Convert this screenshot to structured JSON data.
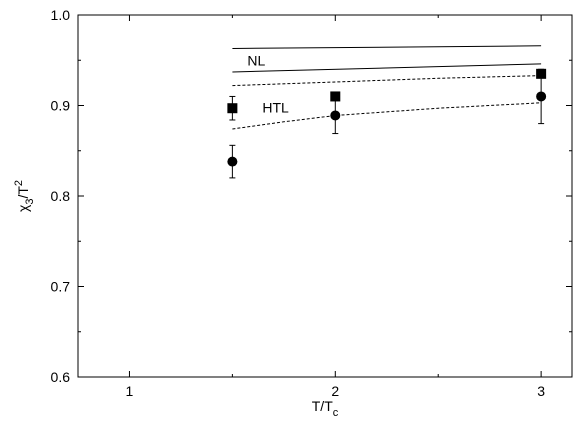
{
  "chart_data": {
    "type": "scatter",
    "xlabel": "T/T",
    "xlabel_sub": "c",
    "ylabel": "χ",
    "ylabel_sub": "3",
    "ylabel_tail": "/T",
    "ylabel_sup": "2",
    "xlim": [
      0.75,
      3.15
    ],
    "ylim": [
      0.6,
      1.0
    ],
    "xticks": [
      1,
      2,
      3
    ],
    "xtick_labels": [
      "1",
      "2",
      "3"
    ],
    "yticks": [
      0.6,
      0.7,
      0.8,
      0.9,
      1.0
    ],
    "ytick_labels": [
      "0.6",
      "0.7",
      "0.8",
      "0.9",
      "1.0"
    ],
    "grid": false,
    "series": [
      {
        "marker": "square",
        "points": [
          {
            "x": 1.5,
            "y": 0.897,
            "err": 0.013
          },
          {
            "x": 2.0,
            "y": 0.91,
            "err": 0.0
          },
          {
            "x": 3.0,
            "y": 0.935,
            "err": 0.0
          }
        ]
      },
      {
        "marker": "circle",
        "points": [
          {
            "x": 1.5,
            "y": 0.838,
            "err": 0.018
          },
          {
            "x": 2.0,
            "y": 0.889,
            "err": 0.02
          },
          {
            "x": 3.0,
            "y": 0.91,
            "err": 0.03
          }
        ]
      }
    ],
    "bands": [
      {
        "name": "NL",
        "style": "solid",
        "upper": {
          "x": [
            1.5,
            3.0
          ],
          "y": [
            0.963,
            0.966
          ]
        },
        "lower": {
          "x": [
            1.5,
            3.0
          ],
          "y": [
            0.937,
            0.946
          ]
        }
      },
      {
        "name": "HTL",
        "style": "dashed",
        "upper": {
          "x": [
            1.5,
            2.0,
            2.5,
            3.0
          ],
          "y": [
            0.922,
            0.926,
            0.93,
            0.933
          ]
        },
        "lower": {
          "x": [
            1.5,
            1.75,
            2.0,
            2.5,
            3.0
          ],
          "y": [
            0.874,
            0.882,
            0.889,
            0.897,
            0.903
          ]
        }
      }
    ]
  }
}
